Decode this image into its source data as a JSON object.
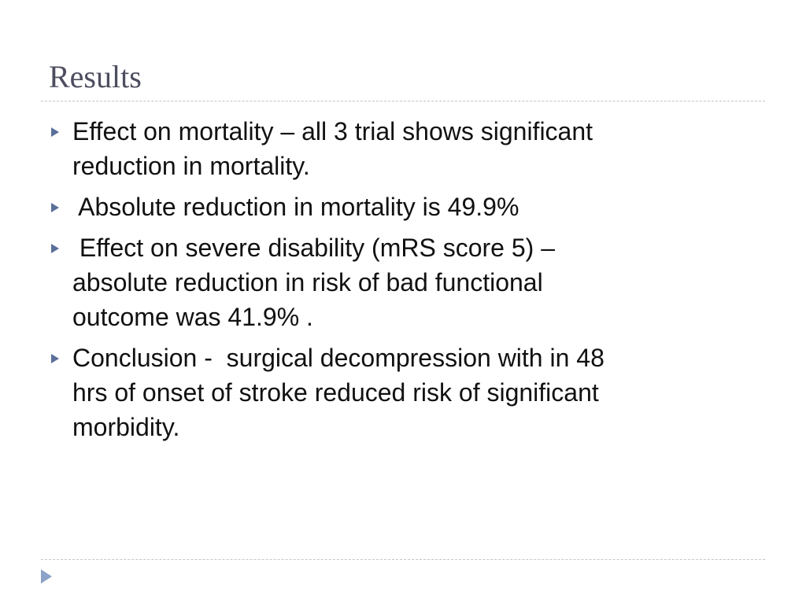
{
  "title": "Results",
  "bullets": [
    {
      "lines": [
        "Effect on mortality – all 3 trial shows significant",
        "reduction in mortality."
      ]
    },
    {
      "lines": [
        " Absolute reduction in mortality is 49.9%"
      ]
    },
    {
      "lines": [
        " Effect on severe disability (mRS score 5) –",
        "absolute reduction in risk of bad functional",
        "outcome was 41.9% ."
      ]
    },
    {
      "lines": [
        "Conclusion -  surgical decompression with in 48",
        "hrs of onset of stroke reduced risk of significant",
        "morbidity."
      ]
    }
  ]
}
